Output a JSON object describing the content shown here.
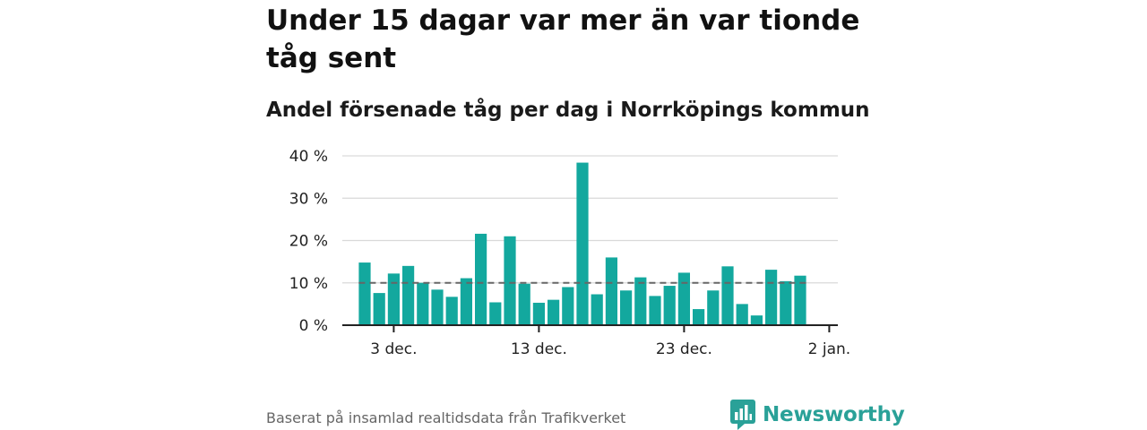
{
  "title": "Under 15 dagar var mer än var tionde tåg sent",
  "subtitle": "Andel försenade tåg per dag i Norrköpings kommun",
  "footer": {
    "source": "Baserat på insamlad realtidsdata från Trafikverket",
    "brand": "Newsworthy"
  },
  "colors": {
    "bar": "#13a89e",
    "reference_line": "#666666",
    "grid": "#d9d9d9",
    "axis": "#222222",
    "brand": "#2aa198"
  },
  "chart_data": {
    "type": "bar",
    "x_unit": "day",
    "x": [
      "2023-12-01",
      "2023-12-02",
      "2023-12-03",
      "2023-12-04",
      "2023-12-05",
      "2023-12-06",
      "2023-12-07",
      "2023-12-08",
      "2023-12-09",
      "2023-12-10",
      "2023-12-11",
      "2023-12-12",
      "2023-12-13",
      "2023-12-14",
      "2023-12-15",
      "2023-12-16",
      "2023-12-17",
      "2023-12-18",
      "2023-12-19",
      "2023-12-20",
      "2023-12-21",
      "2023-12-22",
      "2023-12-23",
      "2023-12-24",
      "2023-12-25",
      "2023-12-26",
      "2023-12-27",
      "2023-12-28",
      "2023-12-29",
      "2023-12-30",
      "2023-12-31"
    ],
    "values": [
      14.8,
      7.6,
      12.2,
      14.0,
      10.0,
      8.4,
      6.7,
      11.1,
      21.6,
      5.4,
      21.0,
      9.8,
      5.3,
      6.0,
      9.0,
      38.4,
      7.3,
      16.0,
      8.2,
      11.3,
      6.9,
      9.3,
      12.4,
      3.8,
      8.2,
      13.9,
      5.0,
      2.3,
      13.1,
      10.4,
      11.7
    ],
    "reference_line": 10,
    "ylim": [
      0,
      40
    ],
    "yticks": [
      0,
      10,
      20,
      30,
      40
    ],
    "ytick_labels": [
      "0 %",
      "10 %",
      "20 %",
      "30 %",
      "40 %"
    ],
    "xticks": [
      "2023-12-03",
      "2023-12-13",
      "2023-12-23",
      "2024-01-02"
    ],
    "xtick_labels": [
      "3 dec.",
      "13 dec.",
      "23 dec.",
      "2 jan."
    ],
    "xlabel": "",
    "ylabel": "",
    "grid": true,
    "legend": "none"
  }
}
